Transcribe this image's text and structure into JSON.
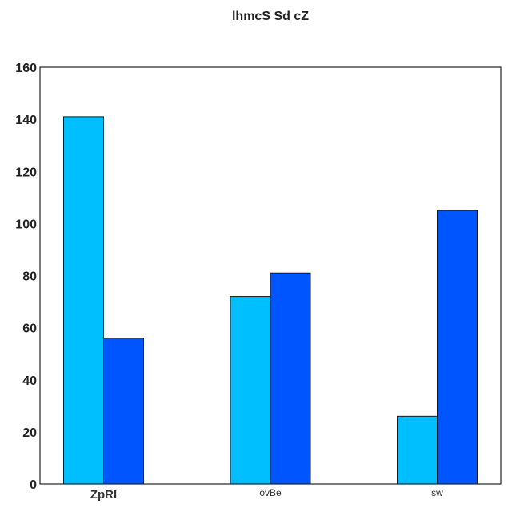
{
  "chart_data": {
    "type": "bar",
    "title": "lhmcS Sd  cZ",
    "xlabel": "",
    "ylabel": "",
    "categories": [
      "ZpRI",
      "ovBe",
      "sw"
    ],
    "series": [
      {
        "values": [
          141,
          72,
          26
        ],
        "color": "#00bfff"
      },
      {
        "values": [
          56,
          81,
          105
        ],
        "color": "#0055ff"
      }
    ],
    "ylim": [
      0,
      160
    ],
    "yticks": [
      0,
      20,
      40,
      60,
      80,
      100,
      120,
      140,
      160
    ],
    "grid": false,
    "legend": "none"
  }
}
